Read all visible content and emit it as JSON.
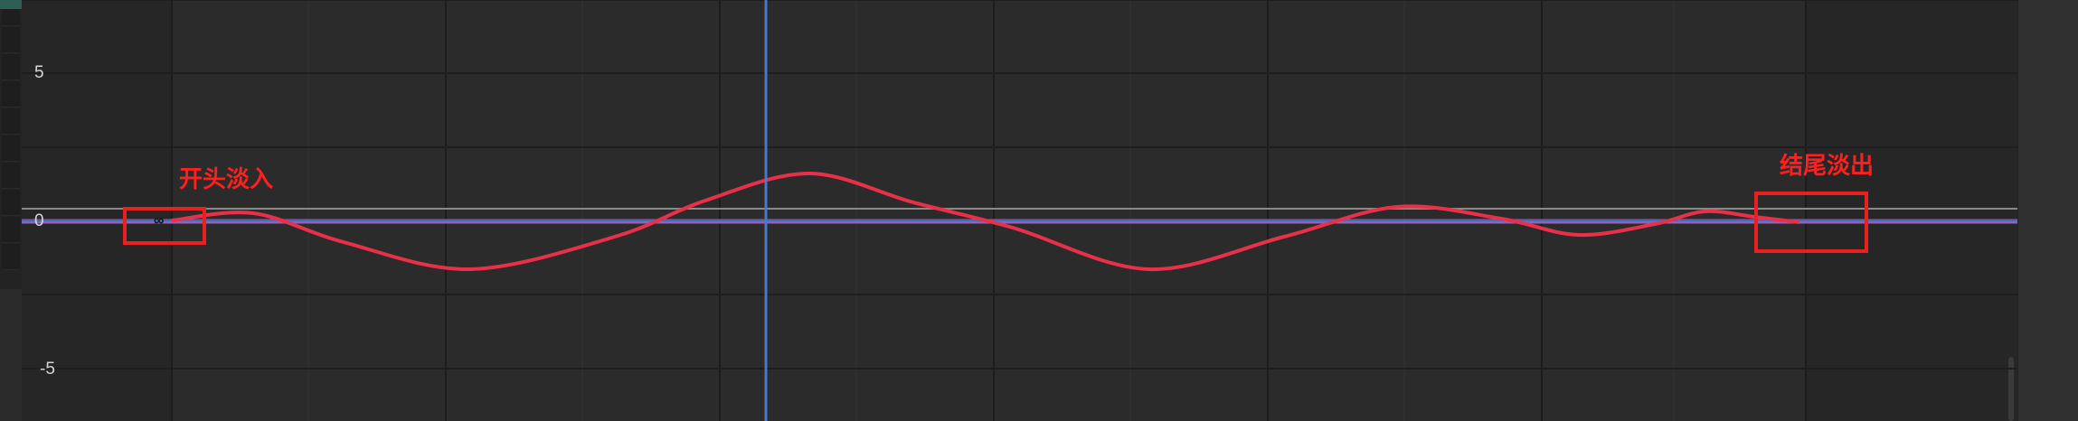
{
  "graph": {
    "y_axis": {
      "ticks": [
        "5",
        "0",
        "-5"
      ]
    },
    "keyframe_marker": "∞",
    "annotations": {
      "fade_in": "开头淡入",
      "fade_out": "结尾淡出"
    }
  },
  "colors": {
    "background": "#2b2b2b",
    "curve": "#e8304a",
    "baseline": "#9a5fb0",
    "playhead": "#4a78c8",
    "annotation": "#ff1f1f"
  },
  "playhead": {
    "frame_fraction": 0.3
  }
}
